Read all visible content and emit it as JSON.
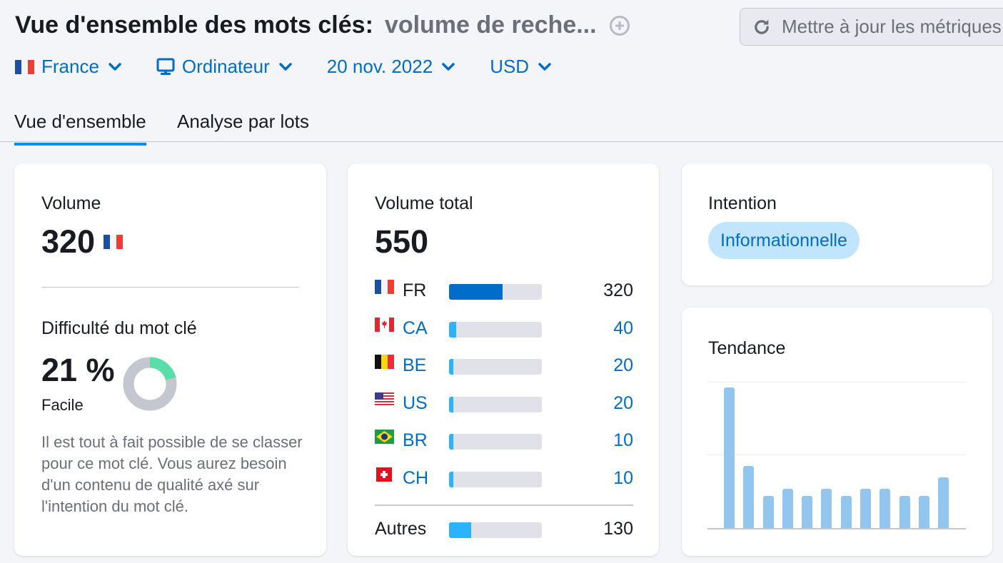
{
  "header": {
    "title": "Vue d'ensemble des mots clés:",
    "keyword": "volume de reche...",
    "add_icon": "plus-circle-icon",
    "refresh_button": {
      "icon": "refresh-icon",
      "label": "Mettre à jour les métriques"
    }
  },
  "filters": [
    {
      "icon": "flag-fr",
      "label": "France"
    },
    {
      "icon": "desktop-icon",
      "label": "Ordinateur"
    },
    {
      "icon": null,
      "label": "20 nov. 2022"
    },
    {
      "icon": null,
      "label": "USD"
    }
  ],
  "tabs": [
    {
      "label": "Vue d'ensemble",
      "active": true
    },
    {
      "label": "Analyse par lots",
      "active": false
    }
  ],
  "volume_card": {
    "label": "Volume",
    "value": "320",
    "flag": "FR",
    "kd_label": "Difficulté du mot clé",
    "kd_value": "21 %",
    "kd_percent": 21,
    "kd_level": "Facile",
    "kd_description": "Il est tout à fait possible de se classer pour ce mot clé. Vous aurez besoin d'un contenu de qualité axé sur l'intention du mot clé.",
    "colors": {
      "kd_fill": "#59ddaa",
      "kd_track": "#c4c7cf"
    }
  },
  "total_volume_card": {
    "label": "Volume total",
    "value": "550",
    "countries": [
      {
        "code": "FR",
        "value": "320",
        "pct": 58,
        "color": "#006dca",
        "link": false
      },
      {
        "code": "CA",
        "value": "40",
        "pct": 8,
        "color": "#2bb3ff",
        "link": true
      },
      {
        "code": "BE",
        "value": "20",
        "pct": 4.5,
        "color": "#2bb3ff",
        "link": true
      },
      {
        "code": "US",
        "value": "20",
        "pct": 4.5,
        "color": "#2bb3ff",
        "link": true
      },
      {
        "code": "BR",
        "value": "10",
        "pct": 4.5,
        "color": "#2bb3ff",
        "link": true
      },
      {
        "code": "CH",
        "value": "10",
        "pct": 4.5,
        "color": "#2bb3ff",
        "link": true
      }
    ],
    "others": {
      "label": "Autres",
      "value": "130",
      "pct": 24,
      "color": "#2bb3ff"
    }
  },
  "intent_card": {
    "label": "Intention",
    "badge": "Informationnelle",
    "colors": {
      "badge_bg": "#c2e5fe",
      "badge_text": "#006dca"
    }
  },
  "trend_card": {
    "label": "Tendance"
  },
  "chart_data": {
    "type": "bar",
    "title": "Tendance",
    "categories": [
      "1",
      "2",
      "3",
      "4",
      "5",
      "6",
      "7",
      "8",
      "9",
      "10",
      "11",
      "12"
    ],
    "values": [
      100,
      44,
      23,
      28,
      23,
      28,
      23,
      28,
      28,
      23,
      23,
      36
    ],
    "xlabel": "",
    "ylabel": "",
    "ylim": [
      0,
      104
    ],
    "grid": true,
    "legend": null,
    "color": "#92c6ee"
  }
}
